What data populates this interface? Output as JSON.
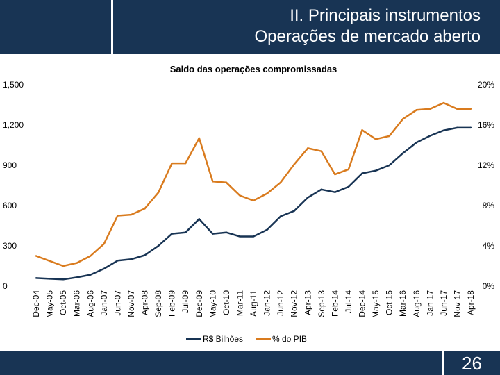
{
  "header": {
    "title_line1": "II. Principais instrumentos",
    "title_line2": "Operações de mercado aberto"
  },
  "footer": {
    "page_number": "26"
  },
  "colors": {
    "navy": "#183454",
    "orange": "#D97B1E",
    "white": "#ffffff"
  },
  "chart_data": {
    "type": "line",
    "title": "Saldo das operações compromissadas",
    "categories": [
      "Dec-04",
      "May-05",
      "Oct-05",
      "Mar-06",
      "Aug-06",
      "Jan-07",
      "Jun-07",
      "Nov-07",
      "Apr-08",
      "Sep-08",
      "Feb-09",
      "Jul-09",
      "Dec-09",
      "May-10",
      "Oct-10",
      "Mar-11",
      "Aug-11",
      "Jan-12",
      "Jun-12",
      "Nov-12",
      "Apr-13",
      "Sep-13",
      "Feb-14",
      "Jul-14",
      "Dec-14",
      "May-15",
      "Oct-15",
      "Mar-16",
      "Aug-16",
      "Jan-17",
      "Jun-17",
      "Nov-17",
      "Apr-18"
    ],
    "y_left": {
      "ticks": [
        "0",
        "300",
        "600",
        "900",
        "1,200",
        "1,500"
      ],
      "ylim": [
        0,
        1500
      ]
    },
    "y_right": {
      "ticks": [
        "0%",
        "4%",
        "8%",
        "12%",
        "16%",
        "20%"
      ],
      "ylim": [
        0,
        20
      ]
    },
    "series": [
      {
        "name": "R$ Bilhões",
        "axis": "left",
        "color": "#183454",
        "values": [
          60,
          55,
          50,
          65,
          85,
          130,
          190,
          200,
          230,
          300,
          390,
          400,
          500,
          390,
          400,
          370,
          370,
          420,
          520,
          560,
          660,
          720,
          700,
          740,
          840,
          860,
          900,
          990,
          1070,
          1120,
          1160,
          1180,
          1180
        ]
      },
      {
        "name": "% do PIB",
        "axis": "right",
        "color": "#D97B1E",
        "values": [
          3.0,
          2.5,
          2.0,
          2.3,
          3.0,
          4.2,
          7.0,
          7.1,
          7.7,
          9.3,
          12.2,
          12.2,
          14.7,
          10.4,
          10.3,
          9.0,
          8.5,
          9.2,
          10.3,
          12.1,
          13.7,
          13.4,
          11.1,
          11.6,
          15.5,
          14.6,
          14.9,
          16.6,
          17.5,
          17.6,
          18.2,
          17.6,
          17.6
        ]
      }
    ],
    "legend": [
      "R$ Bilhões",
      "% do PIB"
    ],
    "legend_position": "bottom"
  }
}
